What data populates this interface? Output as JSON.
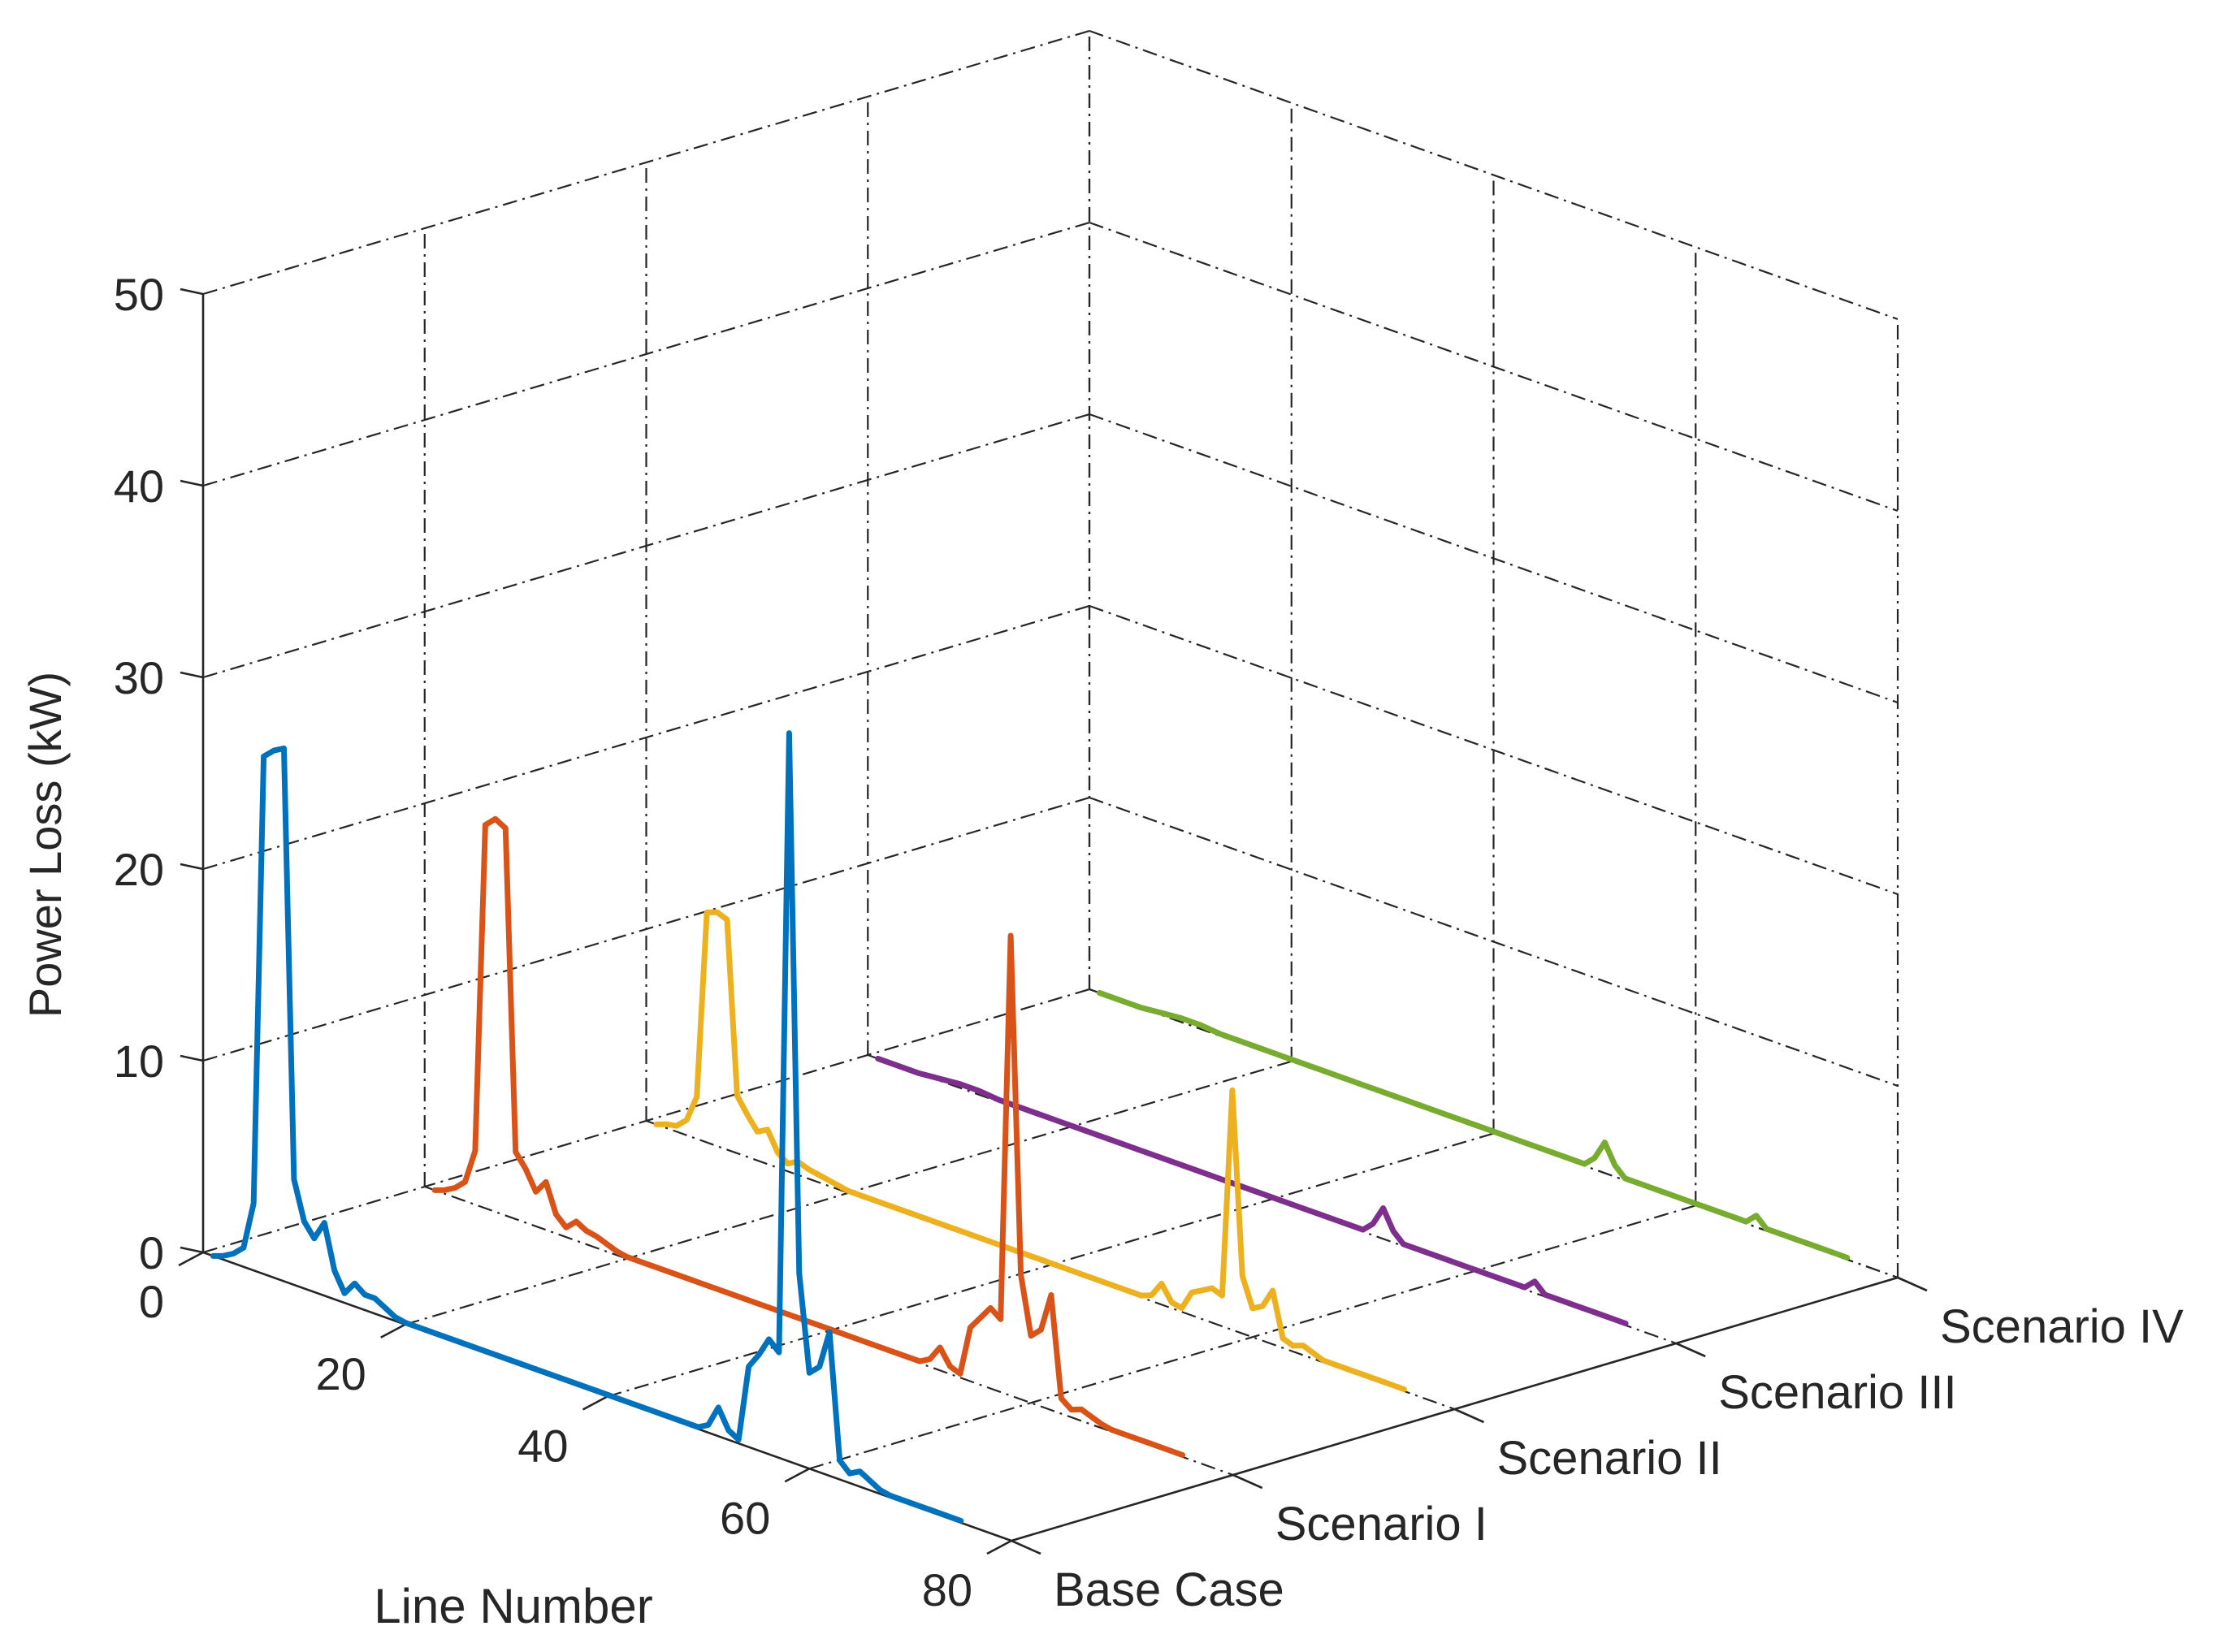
{
  "chart_data": {
    "type": "line",
    "subtype": "3d-waterfall",
    "title": "",
    "xlabel": "Line Number",
    "ylabel": "",
    "zlabel": "Power Loss (kW)",
    "xlim": [
      0,
      80
    ],
    "zlim": [
      0,
      50
    ],
    "x_ticks": [
      0,
      20,
      40,
      60,
      80
    ],
    "z_ticks": [
      0,
      10,
      20,
      30,
      40,
      50
    ],
    "y_categories": [
      "Base Case",
      "Scenario I",
      "Scenario II",
      "Scenario III",
      "Scenario IV"
    ],
    "grid": true,
    "series": [
      {
        "name": "Base Case",
        "color": "#0072BD",
        "x": [
          1,
          2,
          3,
          4,
          5,
          6,
          7,
          8,
          9,
          10,
          11,
          12,
          13,
          14,
          15,
          16,
          17,
          18,
          19,
          20,
          22,
          25,
          28,
          31,
          34,
          37,
          40,
          43,
          46,
          49,
          50,
          51,
          52,
          53,
          54,
          55,
          56,
          57,
          58,
          59,
          60,
          61,
          62,
          63,
          64,
          65,
          66,
          67,
          68,
          70,
          72,
          74,
          75
        ],
        "values": [
          0.0,
          0.2,
          0.5,
          1.0,
          3.5,
          27.0,
          27.5,
          27.8,
          5.5,
          3.5,
          2.8,
          3.8,
          1.5,
          0.5,
          1.2,
          0.8,
          0.8,
          0.5,
          0.2,
          0.1,
          0.1,
          0.1,
          0.1,
          0.1,
          0.1,
          0.1,
          0.1,
          0.1,
          0.1,
          0.1,
          0.4,
          1.5,
          0.5,
          0.2,
          4.2,
          5.0,
          6.0,
          5.5,
          38.0,
          10.0,
          5.0,
          5.5,
          7.5,
          1.0,
          0.5,
          0.8,
          0.5,
          0.2,
          0.1,
          0.1,
          0.1,
          0.1,
          0.1
        ]
      },
      {
        "name": "Scenario I",
        "color": "#D95319",
        "x": [
          1,
          2,
          3,
          4,
          5,
          6,
          7,
          8,
          9,
          10,
          11,
          12,
          13,
          14,
          15,
          16,
          17,
          18,
          19,
          20,
          22,
          25,
          28,
          31,
          34,
          37,
          40,
          43,
          46,
          49,
          50,
          51,
          52,
          53,
          54,
          55,
          56,
          57,
          58,
          59,
          60,
          61,
          62,
          63,
          64,
          65,
          66,
          67,
          68,
          70,
          72,
          74,
          75
        ],
        "values": [
          0.0,
          0.2,
          0.5,
          1.0,
          2.8,
          20.0,
          20.5,
          20.2,
          3.5,
          2.8,
          1.8,
          2.5,
          1.0,
          0.5,
          1.0,
          0.7,
          0.6,
          0.4,
          0.2,
          0.1,
          0.1,
          0.1,
          0.1,
          0.1,
          0.1,
          0.1,
          0.1,
          0.1,
          0.1,
          0.1,
          0.4,
          1.2,
          0.4,
          0.2,
          2.8,
          3.5,
          4.2,
          3.8,
          24.0,
          6.5,
          3.5,
          4.0,
          6.0,
          0.8,
          0.4,
          0.6,
          0.4,
          0.2,
          0.1,
          0.1,
          0.1,
          0.1,
          0.1
        ]
      },
      {
        "name": "Scenario II",
        "color": "#EDB120",
        "x": [
          1,
          2,
          3,
          4,
          5,
          6,
          7,
          8,
          9,
          10,
          11,
          12,
          13,
          14,
          15,
          16,
          17,
          18,
          19,
          20,
          22,
          25,
          28,
          31,
          34,
          37,
          40,
          43,
          46,
          49,
          50,
          51,
          52,
          53,
          54,
          55,
          56,
          57,
          58,
          59,
          60,
          61,
          62,
          63,
          64,
          65,
          66,
          67,
          68,
          70,
          72,
          74,
          75
        ],
        "values": [
          0.0,
          0.2,
          0.3,
          0.8,
          2.2,
          12.0,
          12.2,
          12.0,
          3.0,
          2.2,
          1.5,
          1.8,
          0.8,
          0.4,
          0.7,
          0.5,
          0.4,
          0.3,
          0.2,
          0.1,
          0.1,
          0.1,
          0.1,
          0.1,
          0.1,
          0.1,
          0.1,
          0.1,
          0.1,
          0.1,
          0.3,
          1.1,
          0.3,
          0.2,
          1.2,
          1.5,
          1.8,
          1.6,
          12.5,
          3.0,
          1.5,
          1.8,
          2.8,
          0.5,
          0.3,
          0.5,
          0.3,
          0.1,
          0.1,
          0.1,
          0.1,
          0.1,
          0.1
        ]
      },
      {
        "name": "Scenario III",
        "color": "#7E2F8E",
        "x": [
          1,
          3,
          5,
          7,
          9,
          11,
          13,
          15,
          17,
          19,
          21,
          23,
          25,
          27,
          29,
          31,
          33,
          35,
          37,
          39,
          41,
          43,
          45,
          47,
          49,
          50,
          51,
          52,
          53,
          55,
          57,
          59,
          61,
          63,
          64,
          65,
          66,
          67,
          68,
          69,
          70,
          71,
          72,
          73,
          74,
          75
        ],
        "values": [
          0.0,
          0.0,
          0.0,
          0.1,
          0.2,
          0.2,
          0.1,
          0.1,
          0.1,
          0.1,
          0.1,
          0.1,
          0.1,
          0.1,
          0.1,
          0.1,
          0.1,
          0.1,
          0.1,
          0.1,
          0.1,
          0.1,
          0.1,
          0.1,
          0.1,
          0.6,
          1.6,
          0.6,
          0.1,
          0.1,
          0.1,
          0.1,
          0.1,
          0.1,
          0.1,
          0.1,
          0.6,
          0.1,
          0.1,
          0.1,
          0.1,
          0.1,
          0.1,
          0.1,
          0.1,
          0.1
        ]
      },
      {
        "name": "Scenario IV",
        "color": "#77AC30",
        "x": [
          1,
          3,
          5,
          7,
          9,
          11,
          13,
          15,
          17,
          19,
          21,
          23,
          25,
          27,
          29,
          31,
          33,
          35,
          37,
          39,
          41,
          43,
          45,
          47,
          49,
          50,
          51,
          52,
          53,
          55,
          57,
          59,
          61,
          63,
          64,
          65,
          66,
          67,
          68,
          69,
          70,
          71,
          72,
          73,
          74,
          75
        ],
        "values": [
          0.0,
          0.0,
          0.0,
          0.1,
          0.2,
          0.2,
          0.1,
          0.1,
          0.1,
          0.1,
          0.1,
          0.1,
          0.1,
          0.1,
          0.1,
          0.1,
          0.1,
          0.1,
          0.1,
          0.1,
          0.1,
          0.1,
          0.1,
          0.1,
          0.1,
          0.6,
          1.6,
          0.6,
          0.1,
          0.1,
          0.1,
          0.1,
          0.1,
          0.1,
          0.1,
          0.1,
          0.6,
          0.1,
          0.1,
          0.1,
          0.1,
          0.1,
          0.1,
          0.1,
          0.1,
          0.1
        ]
      }
    ]
  }
}
